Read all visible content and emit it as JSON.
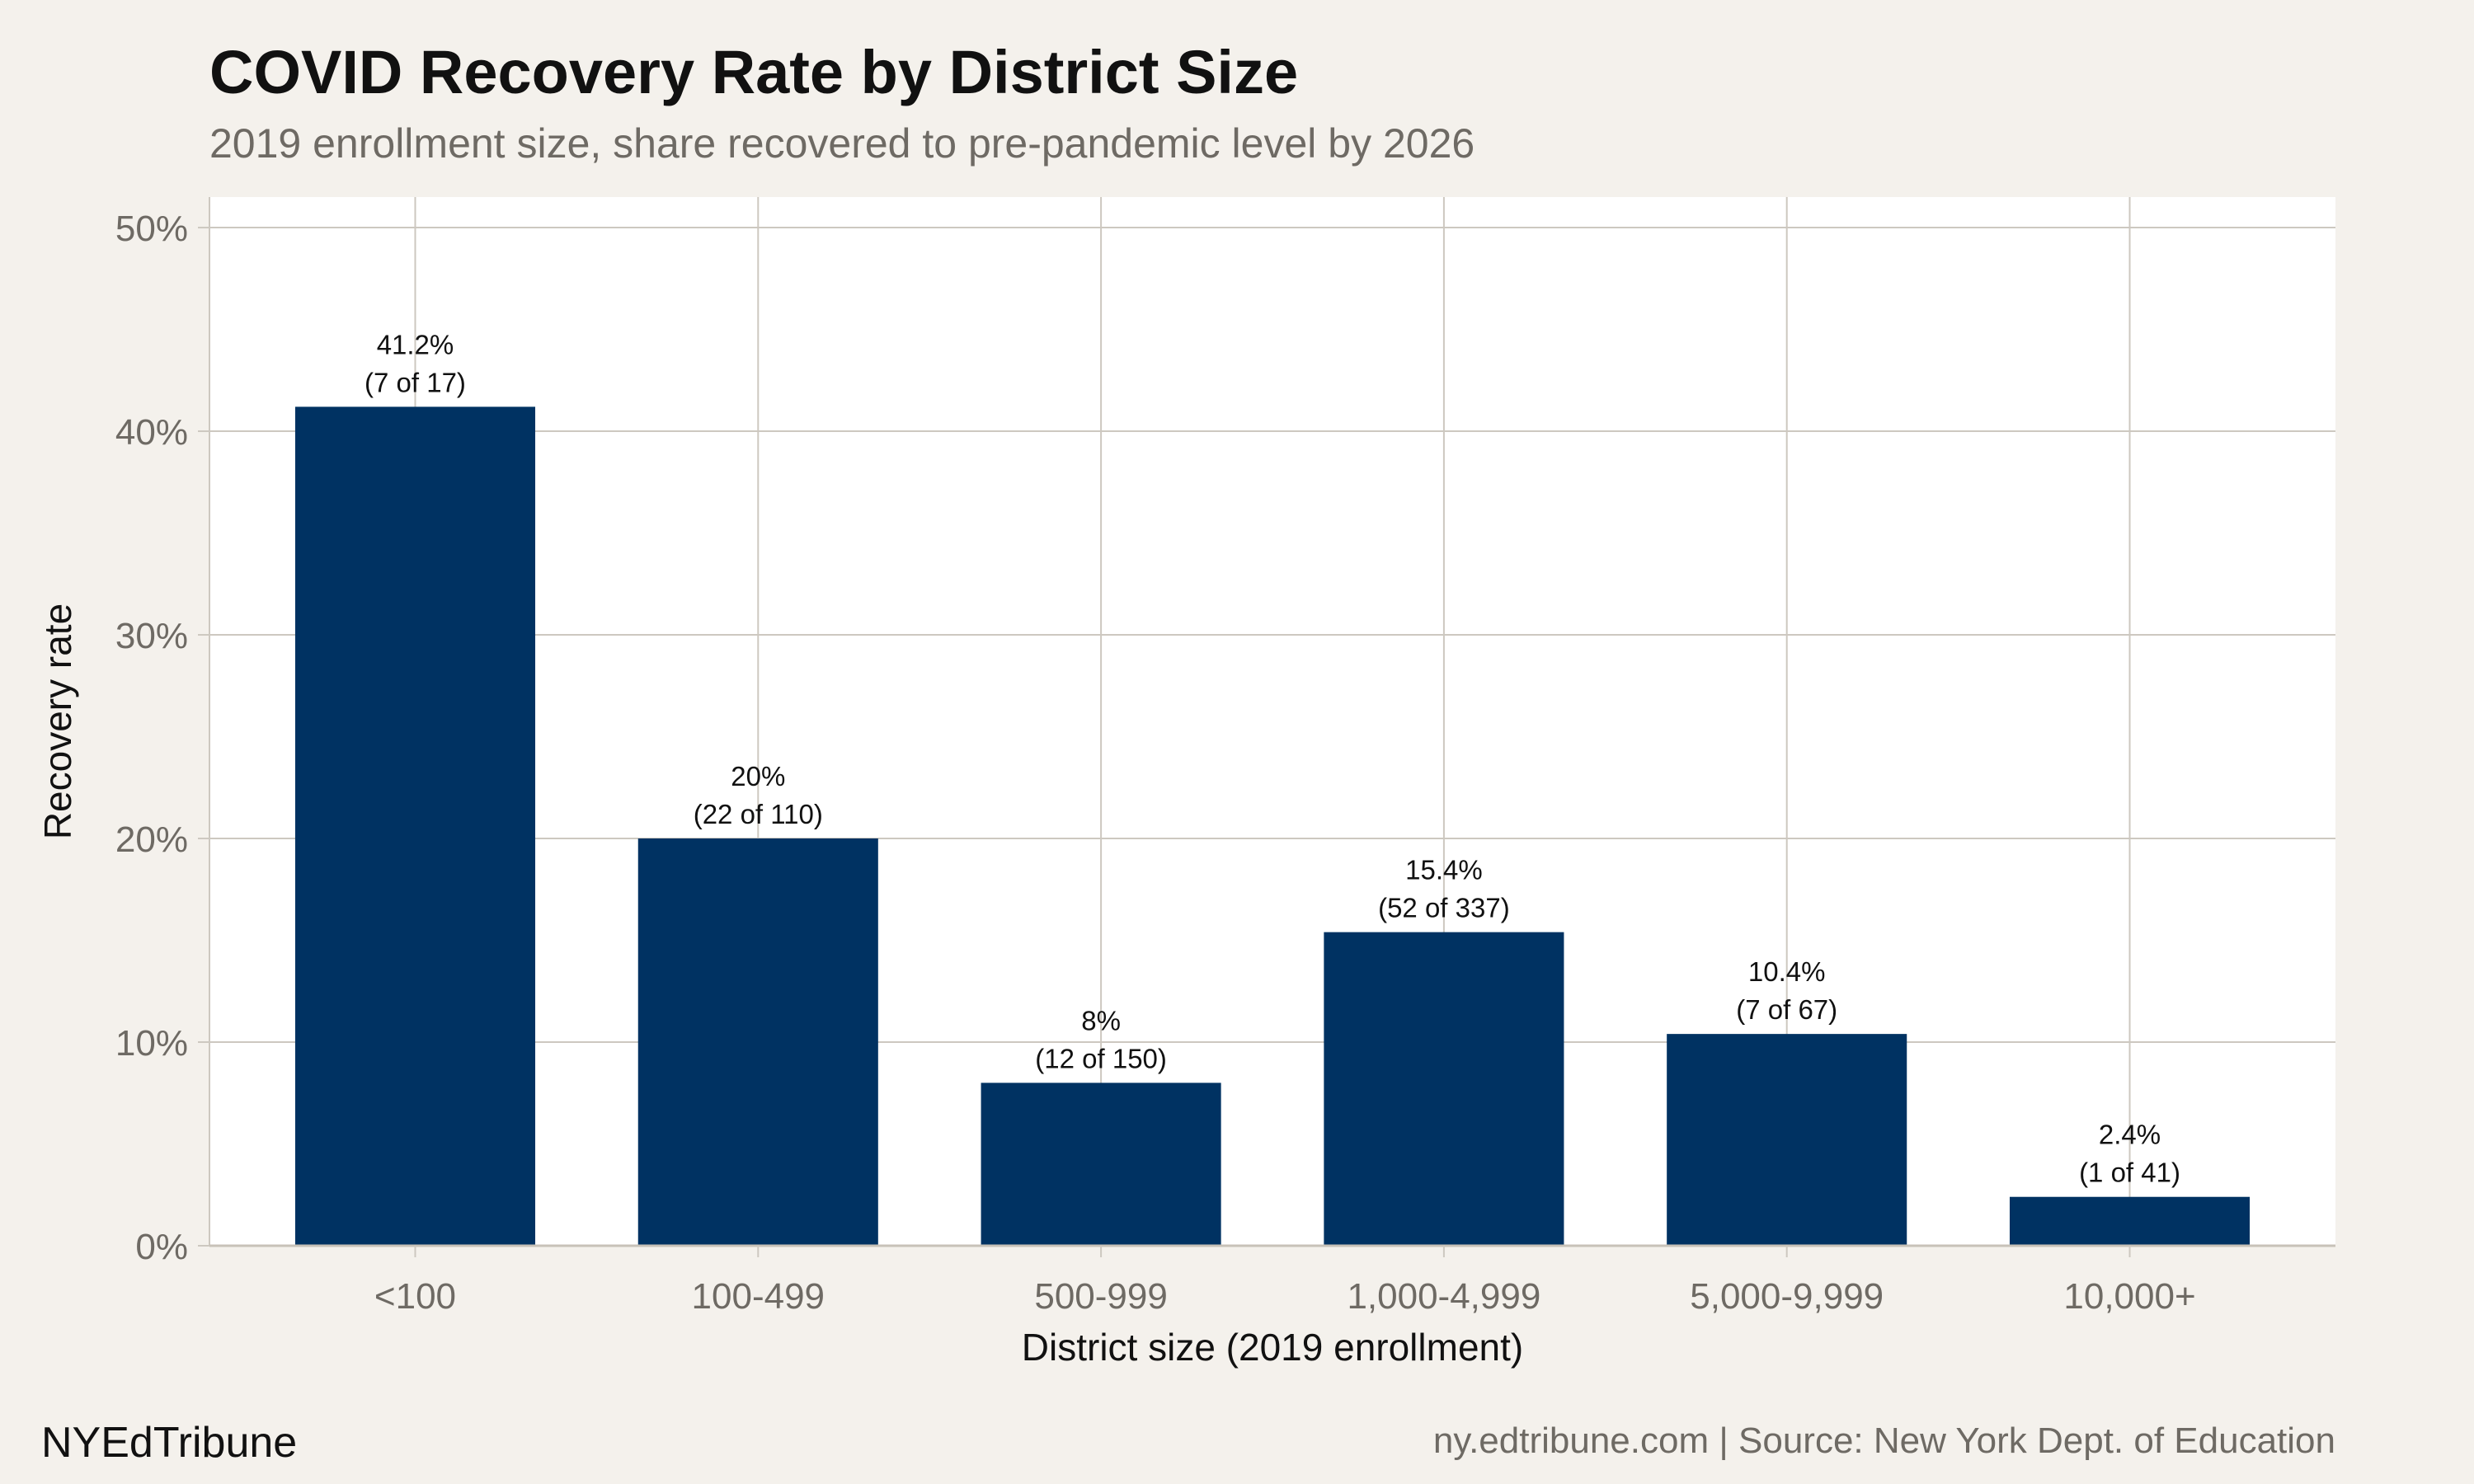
{
  "chart_data": {
    "type": "bar",
    "title": "COVID Recovery Rate by District Size",
    "subtitle": "2019 enrollment size, share recovered to pre-pandemic level by 2026",
    "xlabel": "District size (2019 enrollment)",
    "ylabel": "Recovery rate",
    "categories": [
      "<100",
      "100-499",
      "500-999",
      "1,000-4,999",
      "5,000-9,999",
      "10,000+"
    ],
    "values": [
      41.2,
      20,
      8,
      15.4,
      10.4,
      2.4
    ],
    "value_labels": [
      "41.2%",
      "20%",
      "8%",
      "15.4%",
      "10.4%",
      "2.4%"
    ],
    "count_labels": [
      "(7 of 17)",
      "(22 of 110)",
      "(12 of 150)",
      "(52 of 337)",
      "(7 of 67)",
      "(1 of 41)"
    ],
    "yticks": [
      0,
      10,
      20,
      30,
      40,
      50
    ],
    "ytick_labels": [
      "0%",
      "10%",
      "20%",
      "30%",
      "40%",
      "50%"
    ],
    "ylim": [
      0,
      51.5
    ],
    "grid": true,
    "legend": "none",
    "colors": {
      "bar": "#003262",
      "background": "#f4f1ec",
      "panel": "#ffffff",
      "grid": "#cdc8c0"
    }
  },
  "footer": {
    "brand": "NYEdTribune",
    "source": "ny.edtribune.com | Source: New York Dept. of Education"
  }
}
